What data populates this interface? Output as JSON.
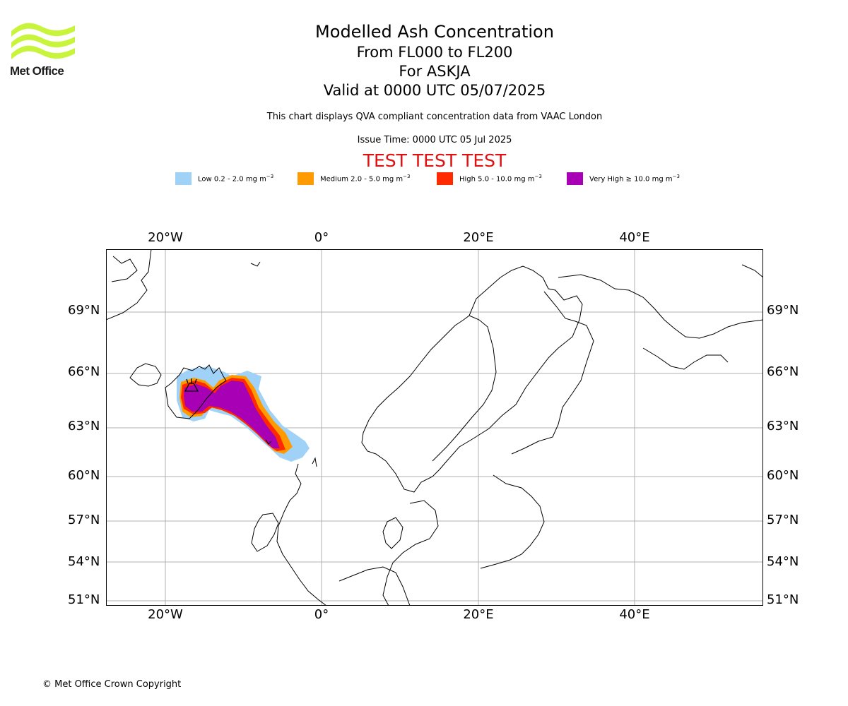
{
  "logo": {
    "text": "Met Office",
    "brand_color": "#c8f53c",
    "text_color": "#1e1e1e"
  },
  "title": {
    "line1": "Modelled Ash Concentration",
    "line2": "From FL000 to FL200",
    "line3": "For ASKJA",
    "line4": "Valid at 0000 UTC 05/07/2025"
  },
  "description": "This chart displays QVA compliant concentration data from VAAC London",
  "issue_time": "Issue Time: 0000 UTC 05 Jul 2025",
  "test_banner": {
    "text": "TEST TEST TEST",
    "color": "#e01010"
  },
  "legend": [
    {
      "label": "Low 0.2 - 2.0 mg m",
      "unit_exp": "−3",
      "color": "#a0d2f8"
    },
    {
      "label": "Medium 2.0 - 5.0 mg m",
      "unit_exp": "−3",
      "color": "#ff9a00"
    },
    {
      "label": "High 5.0 - 10.0 mg m",
      "unit_exp": "−3",
      "color": "#ff2a00"
    },
    {
      "label": "Very High  ≥  10.0 mg m",
      "unit_exp": "−3",
      "color": "#a800b4"
    }
  ],
  "map": {
    "lon_labels": [
      "20°W",
      "0°",
      "20°E",
      "40°E"
    ],
    "lat_labels": [
      "69°N",
      "66°N",
      "63°N",
      "60°N",
      "57°N",
      "54°N",
      "51°N"
    ],
    "gridlines": true,
    "volcano_icon": "volcano-icon"
  },
  "copyright": "© Met Office Crown Copyright"
}
